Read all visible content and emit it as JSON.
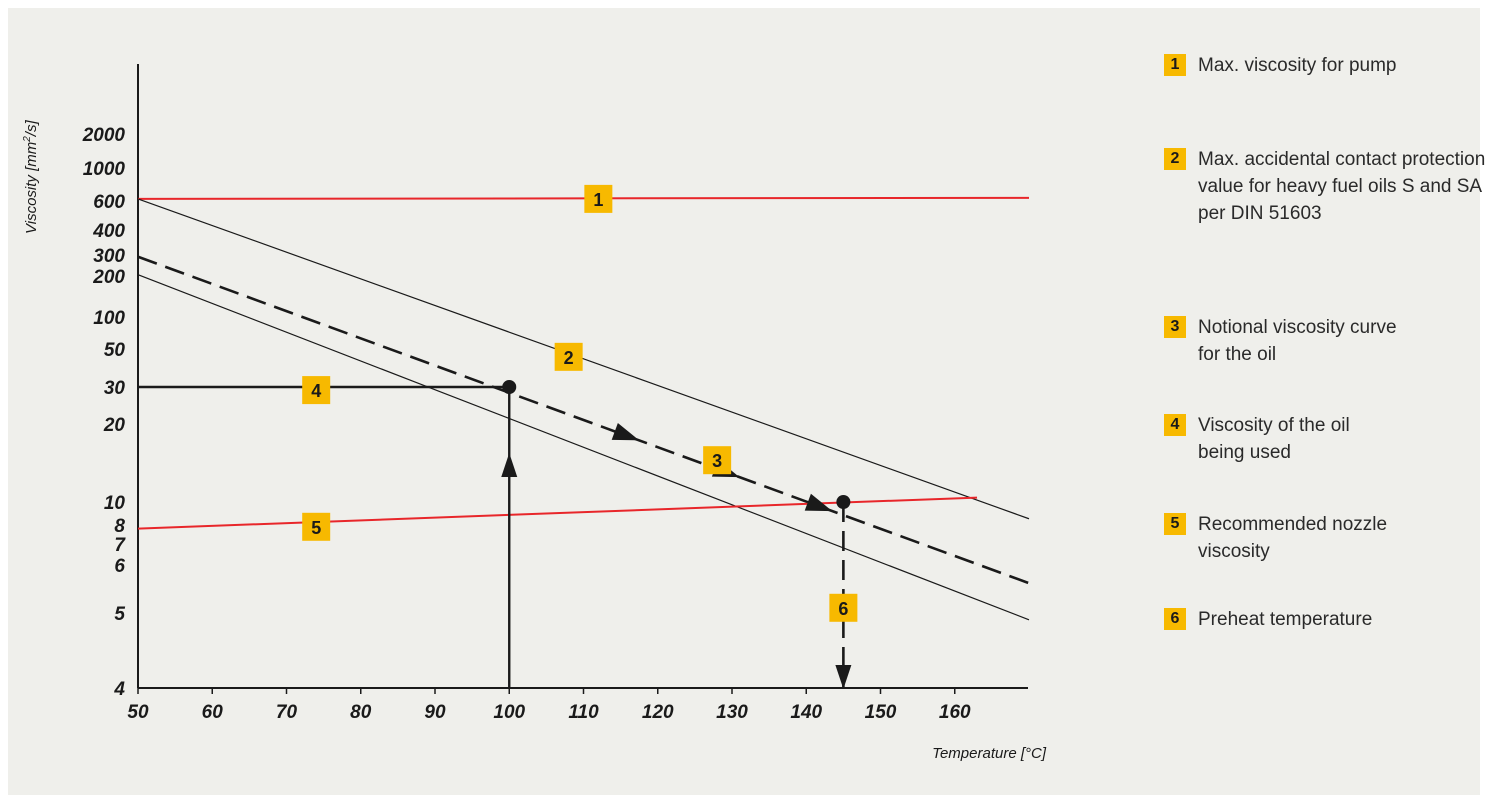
{
  "chart_data": {
    "type": "line",
    "xlabel": "Temperature [°C]",
    "ylabel_prefix": "Viscosity [mm",
    "ylabel_sup": "2",
    "ylabel_suffix": "/s]",
    "xlim": [
      50,
      170
    ],
    "x_ticks": [
      50,
      60,
      70,
      80,
      90,
      100,
      110,
      120,
      130,
      140,
      150,
      160
    ],
    "y_tick_labels": [
      {
        "label": "2000",
        "value": 2000
      },
      {
        "label": "1000",
        "value": 1000
      },
      {
        "label": "600",
        "value": 600
      },
      {
        "label": "400",
        "value": 400
      },
      {
        "label": "300",
        "value": 300
      },
      {
        "label": "200",
        "value": 200
      },
      {
        "label": "100",
        "value": 100
      },
      {
        "label": "50",
        "value": 50
      },
      {
        "label": "30",
        "value": 30
      },
      {
        "label": "20",
        "value": 20
      },
      {
        "label": "10",
        "value": 10
      },
      {
        "label": "8",
        "value": 8
      },
      {
        "label": "7",
        "value": 7
      },
      {
        "label": "6",
        "value": 6
      },
      {
        "label": "5",
        "value": 5
      },
      {
        "label": "4",
        "value": 4
      }
    ],
    "series": [
      {
        "id": "max-pump-viscosity",
        "style": "red",
        "points": [
          [
            50,
            620
          ],
          [
            170,
            630
          ]
        ]
      },
      {
        "id": "contact-protection",
        "style": "thin",
        "points": [
          [
            50,
            620
          ],
          [
            170,
            8.5
          ]
        ]
      },
      {
        "id": "notional-curve",
        "style": "dashed",
        "points": [
          [
            50,
            290
          ],
          [
            170,
            5.6
          ]
        ]
      },
      {
        "id": "lower-boundary",
        "style": "thin",
        "points": [
          [
            50,
            205
          ],
          [
            170,
            4.9
          ]
        ]
      },
      {
        "id": "nozzle-viscosity",
        "style": "red",
        "points": [
          [
            50,
            7.8
          ],
          [
            163,
            10.4
          ]
        ]
      },
      {
        "id": "oil-viscosity",
        "style": "black",
        "points": [
          [
            50,
            30
          ],
          [
            100,
            30
          ]
        ]
      },
      {
        "id": "temperature-at-100",
        "style": "black",
        "points": [
          [
            100,
            4
          ],
          [
            100,
            30
          ]
        ]
      },
      {
        "id": "preheat-temperature",
        "style": "dashed",
        "points": [
          [
            145,
            10
          ],
          [
            145,
            4
          ]
        ]
      }
    ],
    "markers": [
      {
        "x": 100,
        "y": 30
      },
      {
        "x": 145,
        "y": 10
      }
    ],
    "badges": [
      {
        "label": "1",
        "x": 112,
        "y": 620
      },
      {
        "label": "2",
        "x": 108,
        "y": 45
      },
      {
        "label": "3",
        "x": 128,
        "y": 14.5
      },
      {
        "label": "4",
        "x": 74,
        "y": 29
      },
      {
        "label": "5",
        "x": 74,
        "y": 7.9
      },
      {
        "label": "6",
        "x": 145,
        "y": 5.1
      }
    ]
  },
  "legend": [
    {
      "num": "1",
      "text": "Max. viscosity for pump"
    },
    {
      "num": "2",
      "text": "Max. accidental contact protection value for heavy fuel oils S and SA per DIN 51603"
    },
    {
      "num": "3",
      "text": "Notional viscosity curve for the oil"
    },
    {
      "num": "4",
      "text": "Viscosity of the oil being used"
    },
    {
      "num": "5",
      "text": "Recommended nozzle viscosity"
    },
    {
      "num": "6",
      "text": "Preheat temperature"
    }
  ],
  "colors": {
    "accent": "#f7b900",
    "red": "#e8262a",
    "ink": "#1a1a1a",
    "background": "#efefeb"
  }
}
